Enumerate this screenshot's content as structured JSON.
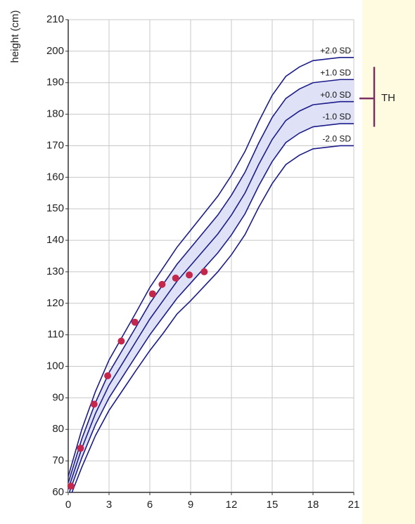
{
  "chart_data": {
    "type": "line",
    "y_label": "height (cm)",
    "x": [
      0,
      1,
      2,
      3,
      4,
      5,
      6,
      7,
      8,
      9,
      10,
      11,
      12,
      13,
      14,
      15,
      16,
      17,
      18,
      19,
      20,
      21
    ],
    "xlim": [
      0,
      21
    ],
    "ylim": [
      60,
      210
    ],
    "xticks": [
      0,
      3,
      6,
      9,
      12,
      15,
      18,
      21
    ],
    "yticks": [
      60,
      70,
      80,
      90,
      100,
      110,
      120,
      130,
      140,
      150,
      160,
      170,
      180,
      190,
      200,
      210
    ],
    "grid": true,
    "band_color": "#dfe1f6",
    "series": [
      {
        "name": "+2.0 SD",
        "color": "#1c1c8a",
        "values": [
          65,
          80,
          92,
          102,
          109.6,
          117.2,
          125,
          131.4,
          137.8,
          143.2,
          148.6,
          154,
          160.6,
          168.2,
          177.6,
          186,
          192,
          195,
          197,
          197.5,
          198,
          198
        ]
      },
      {
        "name": "+1.0 SD",
        "color": "#1c1c8a",
        "values": [
          63,
          77,
          88.5,
          98,
          105.3,
          112.6,
          120,
          126.2,
          132.4,
          137.6,
          142.8,
          148,
          154.3,
          161.6,
          170.8,
          179,
          185,
          188,
          190,
          190.5,
          191,
          191
        ]
      },
      {
        "name": "+0.0 SD",
        "color": "#1c1c8a",
        "values": [
          61,
          74,
          85,
          94,
          101,
          108,
          115,
          121,
          127,
          132,
          137,
          142,
          148,
          155,
          164,
          172,
          178,
          181,
          183,
          183.5,
          184,
          184
        ]
      },
      {
        "name": "-1.0 SD",
        "color": "#1c1c8a",
        "values": [
          59,
          71,
          81.5,
          90,
          96.7,
          103.4,
          110,
          115.8,
          121.6,
          126.4,
          131.2,
          136,
          141.7,
          148.4,
          157.2,
          165,
          171,
          174,
          176,
          176.5,
          177,
          177
        ]
      },
      {
        "name": "-2.0 SD",
        "color": "#1c1c8a",
        "values": [
          57,
          68,
          78,
          86,
          92.4,
          98.8,
          105,
          110.6,
          116.6,
          120.8,
          125.4,
          130,
          135.4,
          141.8,
          150.4,
          158,
          164,
          167,
          169,
          169.5,
          170,
          170
        ]
      }
    ],
    "points": {
      "color": "#c3284c",
      "x": [
        0.2,
        0.9,
        1.9,
        2.9,
        3.9,
        4.9,
        6.2,
        6.9,
        7.9,
        8.9,
        10
      ],
      "y": [
        62,
        74,
        88,
        97,
        108,
        114,
        123,
        126,
        128,
        129,
        130
      ]
    },
    "target_height": {
      "label": "TH",
      "value": 185,
      "range": [
        176,
        195
      ],
      "color": "#7a2f62"
    }
  }
}
